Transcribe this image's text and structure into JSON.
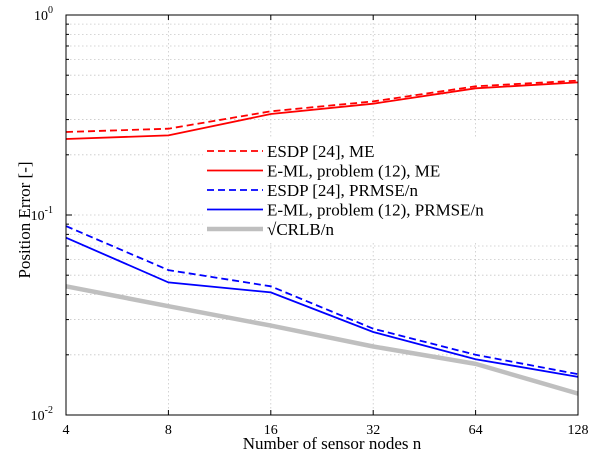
{
  "chart_data": {
    "type": "line",
    "title": "",
    "xlabel": "Number of sensor nodes n",
    "ylabel": "Position Error [-]",
    "x": [
      4,
      8,
      16,
      32,
      64,
      128
    ],
    "x_tick_labels": [
      "4",
      "8",
      "16",
      "32",
      "64",
      "128"
    ],
    "x_scale": "log2",
    "xlim": [
      4,
      128
    ],
    "y_scale": "log10",
    "ylim": [
      0.01,
      1
    ],
    "y_tick_labels": [
      {
        "value": 1,
        "mantissa": "10",
        "exponent": "0"
      },
      {
        "value": 0.1,
        "mantissa": "10",
        "exponent": "-1"
      },
      {
        "value": 0.01,
        "mantissa": "10",
        "exponent": "-2"
      }
    ],
    "grid": true,
    "legend_position": "center-right",
    "series": [
      {
        "name": "ESDP [24], ME",
        "color": "#ff0000",
        "dash": "dashed",
        "values": [
          0.26,
          0.27,
          0.33,
          0.37,
          0.44,
          0.47
        ]
      },
      {
        "name": "E-ML, problem (12), ME",
        "color": "#ff0000",
        "dash": "solid",
        "values": [
          0.24,
          0.25,
          0.32,
          0.36,
          0.43,
          0.46
        ]
      },
      {
        "name": "ESDP [24], PRMSE/n",
        "color": "#0000ff",
        "dash": "dashed",
        "values": [
          0.088,
          0.053,
          0.044,
          0.027,
          0.02,
          0.016
        ]
      },
      {
        "name": "E-ML, problem (12), PRMSE/n",
        "color": "#0000ff",
        "dash": "solid",
        "values": [
          0.077,
          0.046,
          0.041,
          0.026,
          0.019,
          0.0155
        ]
      },
      {
        "name": "√CRLB/n",
        "color": "#bfbfbf",
        "dash": "thick",
        "values": [
          0.044,
          0.035,
          0.028,
          0.022,
          0.018,
          0.0128
        ]
      }
    ]
  }
}
